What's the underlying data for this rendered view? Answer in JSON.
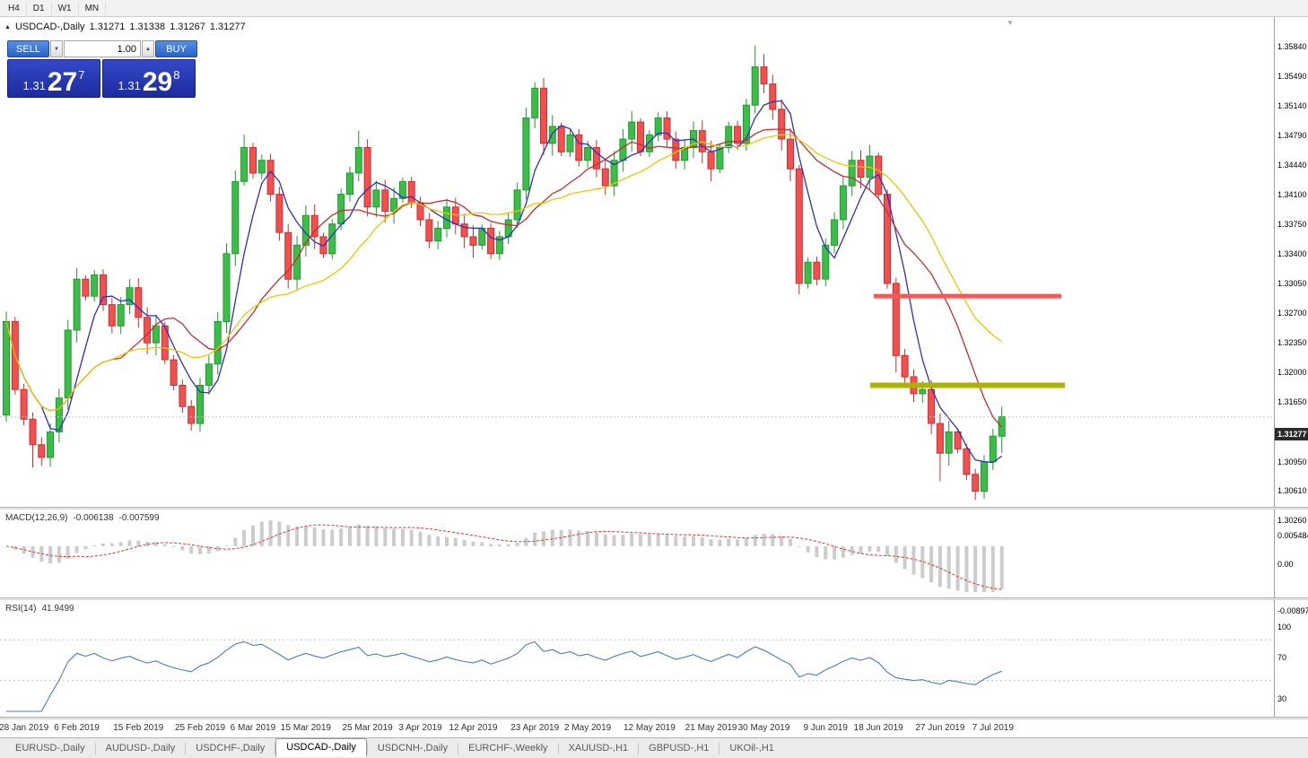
{
  "toolbar": {
    "timeframes": [
      "H4",
      "D1",
      "W1",
      "MN"
    ]
  },
  "chart_header": {
    "symbol": "USDCAD-,Daily",
    "open": "1.31271",
    "high": "1.31338",
    "low": "1.31267",
    "close": "1.31277"
  },
  "trade_panel": {
    "sell_label": "SELL",
    "buy_label": "BUY",
    "volume": "1.00",
    "sell_price": {
      "prefix": "1.31",
      "big": "27",
      "sup": "7"
    },
    "buy_price": {
      "prefix": "1.31",
      "big": "29",
      "sup": "8"
    }
  },
  "icons": {
    "volume_down": "▼",
    "volume_up": "▲",
    "autoscroll_marker": "▼",
    "header_arrow": "▲"
  },
  "tabs": {
    "items": [
      "EURUSD-,Daily",
      "AUDUSD-,Daily",
      "USDCHF-,Daily",
      "USDCAD-,Daily",
      "USDCNH-,Daily",
      "EURCHF-,Weekly",
      "XAUUSD-,H1",
      "GBPUSD-,H1",
      "UKOil-,H1"
    ],
    "active": "USDCAD-,Daily"
  },
  "chart_data": {
    "type": "candlestick",
    "symbol": "USDCAD",
    "period": "Daily",
    "current_price": "1.31277",
    "y_axis": {
      "labels": [
        "1.35840",
        "1.35490",
        "1.35140",
        "1.34790",
        "1.34440",
        "1.34100",
        "1.33750",
        "1.33400",
        "1.33050",
        "1.32700",
        "1.32350",
        "1.32000",
        "1.31650",
        "1.30950",
        "1.30610",
        "1.30260"
      ]
    },
    "x_axis": {
      "labels": [
        "28 Jan 2019",
        "6 Feb 2019",
        "15 Feb 2019",
        "25 Feb 2019",
        "6 Mar 2019",
        "15 Mar 2019",
        "25 Mar 2019",
        "3 Apr 2019",
        "12 Apr 2019",
        "23 Apr 2019",
        "2 May 2019",
        "12 May 2019",
        "21 May 2019",
        "30 May 2019",
        "9 Jun 2019",
        "18 Jun 2019",
        "27 Jun 2019",
        "7 Jul 2019"
      ],
      "candle_indices": [
        2,
        8,
        15,
        22,
        28,
        34,
        41,
        47,
        53,
        60,
        66,
        73,
        80,
        86,
        93,
        99,
        106,
        112
      ]
    },
    "candles": {
      "open_first": 1.313,
      "close": [
        1.324,
        1.316,
        1.3125,
        1.3095,
        1.308,
        1.311,
        1.315,
        1.323,
        1.329,
        1.327,
        1.3295,
        1.326,
        1.3235,
        1.326,
        1.328,
        1.3245,
        1.3215,
        1.3235,
        1.3195,
        1.3165,
        1.314,
        1.312,
        1.3165,
        1.319,
        1.324,
        1.332,
        1.3405,
        1.3445,
        1.3415,
        1.343,
        1.339,
        1.3345,
        1.329,
        1.333,
        1.3365,
        1.334,
        1.332,
        1.3355,
        1.339,
        1.3415,
        1.3445,
        1.3375,
        1.3395,
        1.337,
        1.3385,
        1.3405,
        1.338,
        1.336,
        1.3335,
        1.335,
        1.3375,
        1.3355,
        1.334,
        1.333,
        1.335,
        1.332,
        1.334,
        1.336,
        1.3395,
        1.348,
        1.3515,
        1.345,
        1.347,
        1.344,
        1.346,
        1.343,
        1.3445,
        1.342,
        1.34,
        1.343,
        1.3455,
        1.3475,
        1.344,
        1.346,
        1.348,
        1.3455,
        1.343,
        1.3445,
        1.3465,
        1.344,
        1.342,
        1.3445,
        1.347,
        1.345,
        1.3495,
        1.354,
        1.352,
        1.349,
        1.3455,
        1.342,
        1.3285,
        1.331,
        1.329,
        1.333,
        1.336,
        1.34,
        1.343,
        1.341,
        1.3435,
        1.339,
        1.3285,
        1.32,
        1.3175,
        1.3155,
        1.316,
        1.312,
        1.3085,
        1.311,
        1.309,
        1.306,
        1.304,
        1.3075,
        1.3105,
        1.3128
      ],
      "wick_overrides": {
        "0": {
          "h": 1.3252,
          "l": 1.3122
        },
        "3": {
          "l": 1.3068
        },
        "27": {
          "h": 1.346
        },
        "40": {
          "h": 1.3465
        },
        "59": {
          "h": 1.3492
        },
        "60": {
          "h": 1.3522
        },
        "85": {
          "h": 1.3565
        },
        "86": {
          "h": 1.3555
        },
        "90": {
          "l": 1.3272
        },
        "101": {
          "l": 1.318
        },
        "106": {
          "l": 1.3052
        },
        "110": {
          "l": 1.303
        },
        "113": {
          "h": 1.314,
          "l": 1.3085
        }
      }
    },
    "colors": {
      "up_fill": "#3cbd4a",
      "up_border": "#1f9a2f",
      "down_fill": "#f25050",
      "down_border": "#cc2f2f"
    },
    "moving_averages": [
      {
        "period": 5,
        "color": "#2f2fc4"
      },
      {
        "period": 13,
        "color": "#c22f2f"
      },
      {
        "period": 21,
        "color": "#e8c800"
      }
    ],
    "hlines": [
      {
        "price": 1.327,
        "x1_frac": 0.686,
        "x2_frac": 0.833,
        "color": "#f05a5a",
        "width": 5
      },
      {
        "price": 1.3165,
        "x1_frac": 0.683,
        "x2_frac": 0.836,
        "color": "#abb400",
        "width": 6
      }
    ],
    "macd": {
      "name": "MACD(12,26,9)",
      "value_main": "-0.006138",
      "value_signal": "-0.007599",
      "scale_top": "0.005484",
      "scale_zero": "0.00",
      "scale_bottom": "-0.008971",
      "histogram_color": "#cccccc",
      "signal_color": "#dd3333"
    },
    "rsi": {
      "name": "RSI(14)",
      "value": "41.9499",
      "scale": [
        "100",
        "70",
        "30"
      ],
      "levels": [
        70,
        30
      ],
      "line_color": "#4a7ebb"
    }
  }
}
